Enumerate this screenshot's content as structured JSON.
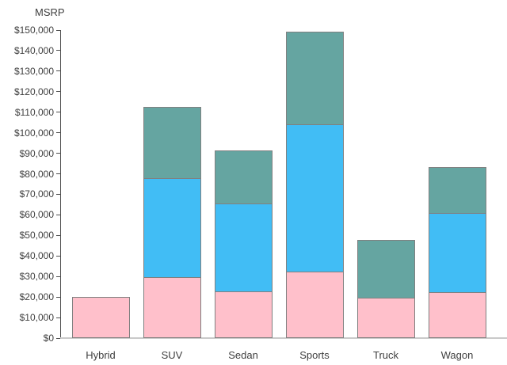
{
  "chart": {
    "background": "#ffffff",
    "text_color": "#3f3f3f",
    "axis_line_color": "#4f4f4f",
    "baseline_color": "#c9c9c9",
    "bar_border_color": "#808080"
  },
  "chart_data": {
    "type": "bar",
    "stacked": true,
    "title": "",
    "ylabel": "MSRP",
    "xlabel": "",
    "categories": [
      "Hybrid",
      "SUV",
      "Sedan",
      "Sports",
      "Truck",
      "Wagon"
    ],
    "series": [
      {
        "name": "bottom-pink-segment",
        "color": "#FFC0CB",
        "values": [
          19900,
          29600,
          22600,
          32200,
          19800,
          22500
        ]
      },
      {
        "name": "middle-blue-segment",
        "color": "#41BDF5",
        "values": [
          0,
          48300,
          43000,
          71800,
          0,
          38500
        ]
      },
      {
        "name": "top-teal-segment",
        "color": "#65A5A1",
        "values": [
          0,
          34800,
          25900,
          45300,
          27900,
          22300
        ]
      }
    ],
    "stack_totals": [
      19900,
      112700,
      91500,
      149300,
      47700,
      83300
    ],
    "ylim": [
      0,
      150000
    ],
    "ytick_interval": 10000,
    "ytick_labels": [
      "$0",
      "$10,000",
      "$20,000",
      "$30,000",
      "$40,000",
      "$50,000",
      "$60,000",
      "$70,000",
      "$80,000",
      "$90,000",
      "$100,000",
      "$110,000",
      "$120,000",
      "$130,000",
      "$140,000",
      "$150,000"
    ],
    "grid": false,
    "legend": "none"
  }
}
